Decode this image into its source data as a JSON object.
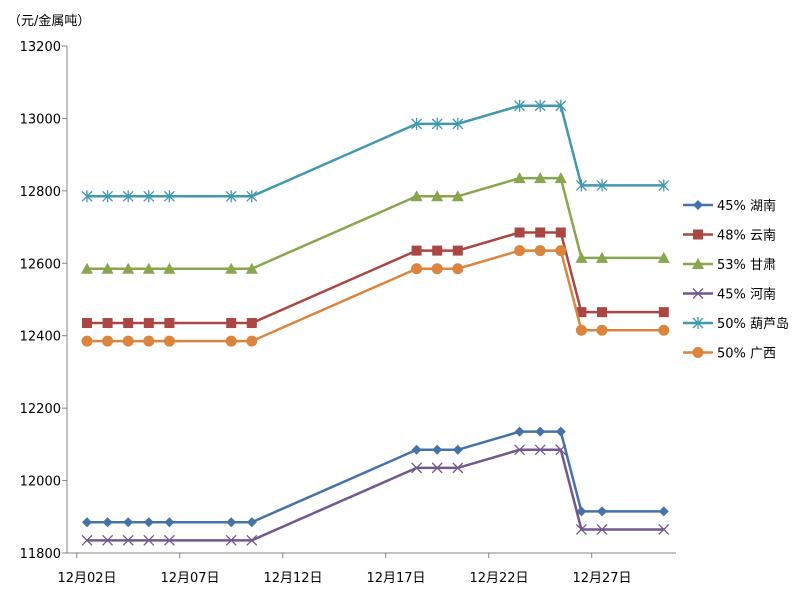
{
  "chart_data": {
    "type": "line",
    "title": "",
    "ylabel": "（元/金属吨）",
    "xlabel": "",
    "ylim": [
      11800,
      13200
    ],
    "yticks": [
      11800,
      12000,
      12200,
      12400,
      12600,
      12800,
      13000,
      13200
    ],
    "xtick_labels": [
      {
        "day": 2,
        "label": "12月02日"
      },
      {
        "day": 7,
        "label": "12月07日"
      },
      {
        "day": 12,
        "label": "12月12日"
      },
      {
        "day": 17,
        "label": "12月17日"
      },
      {
        "day": 22,
        "label": "12月22日"
      },
      {
        "day": 27,
        "label": "12月27日"
      }
    ],
    "x_days": [
      2,
      3,
      4,
      5,
      6,
      9,
      10,
      18,
      19,
      20,
      23,
      24,
      25,
      26,
      27,
      30
    ],
    "legend_position": "right",
    "series": [
      {
        "name": "45% 湖南",
        "color": "#4572A7",
        "marker": "diamond",
        "values": [
          11885,
          11885,
          11885,
          11885,
          11885,
          11885,
          11885,
          12085,
          12085,
          12085,
          12135,
          12135,
          12135,
          11915,
          11915,
          11915
        ]
      },
      {
        "name": "48% 云南",
        "color": "#AA4643",
        "marker": "square",
        "values": [
          12435,
          12435,
          12435,
          12435,
          12435,
          12435,
          12435,
          12635,
          12635,
          12635,
          12685,
          12685,
          12685,
          12465,
          12465,
          12465
        ]
      },
      {
        "name": "53% 甘肃",
        "color": "#89A54E",
        "marker": "triangle",
        "values": [
          12585,
          12585,
          12585,
          12585,
          12585,
          12585,
          12585,
          12785,
          12785,
          12785,
          12835,
          12835,
          12835,
          12615,
          12615,
          12615
        ]
      },
      {
        "name": "45% 河南",
        "color": "#71588F",
        "marker": "x",
        "values": [
          11835,
          11835,
          11835,
          11835,
          11835,
          11835,
          11835,
          12035,
          12035,
          12035,
          12085,
          12085,
          12085,
          11865,
          11865,
          11865
        ]
      },
      {
        "name": "50% 葫芦岛",
        "color": "#4198AF",
        "marker": "star",
        "values": [
          12785,
          12785,
          12785,
          12785,
          12785,
          12785,
          12785,
          12985,
          12985,
          12985,
          13035,
          13035,
          13035,
          12815,
          12815,
          12815
        ]
      },
      {
        "name": "50% 广西",
        "color": "#DB843D",
        "marker": "circle",
        "values": [
          12385,
          12385,
          12385,
          12385,
          12385,
          12385,
          12385,
          12585,
          12585,
          12585,
          12635,
          12635,
          12635,
          12415,
          12415,
          12415
        ]
      }
    ]
  }
}
